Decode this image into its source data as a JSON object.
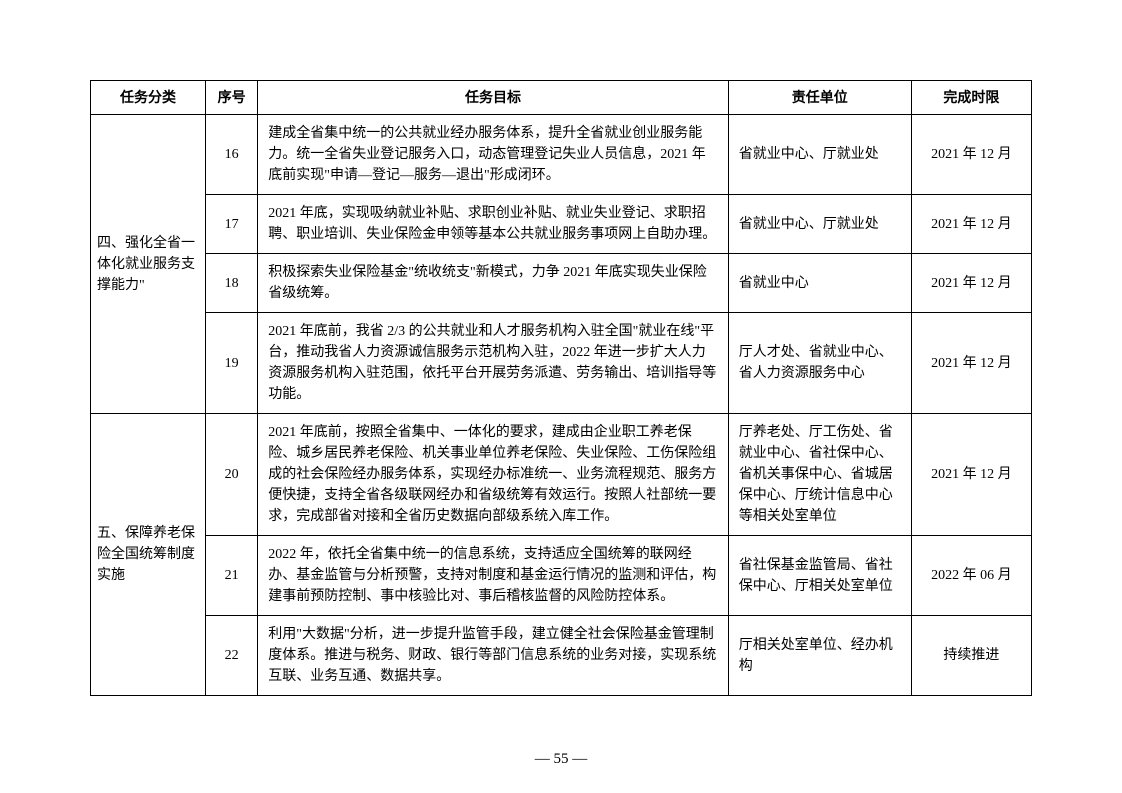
{
  "table": {
    "headers": {
      "category": "任务分类",
      "index": "序号",
      "goal": "任务目标",
      "unit": "责任单位",
      "deadline": "完成时限"
    },
    "groups": [
      {
        "category": "四、强化全省一体化就业服务支撑能力\"",
        "rows": [
          {
            "index": "16",
            "goal": "建成全省集中统一的公共就业经办服务体系，提升全省就业创业服务能力。统一全省失业登记服务入口，动态管理登记失业人员信息，2021 年底前实现\"申请—登记—服务—退出\"形成闭环。",
            "unit": "省就业中心、厅就业处",
            "deadline": "2021 年 12 月"
          },
          {
            "index": "17",
            "goal": "2021 年底，实现吸纳就业补贴、求职创业补贴、就业失业登记、求职招聘、职业培训、失业保险金申领等基本公共就业服务事项网上自助办理。",
            "unit": "省就业中心、厅就业处",
            "deadline": "2021 年 12 月"
          },
          {
            "index": "18",
            "goal": "积极探索失业保险基金\"统收统支\"新模式，力争 2021 年底实现失业保险省级统筹。",
            "unit": "省就业中心",
            "deadline": "2021 年 12 月"
          },
          {
            "index": "19",
            "goal": "2021 年底前，我省 2/3 的公共就业和人才服务机构入驻全国\"就业在线\"平台，推动我省人力资源诚信服务示范机构入驻，2022 年进一步扩大人力资源服务机构入驻范围，依托平台开展劳务派遣、劳务输出、培训指导等功能。",
            "unit": "厅人才处、省就业中心、省人力资源服务中心",
            "deadline": "2021 年 12 月"
          }
        ]
      },
      {
        "category": "五、保障养老保险全国统筹制度实施",
        "rows": [
          {
            "index": "20",
            "goal": "2021 年底前，按照全省集中、一体化的要求，建成由企业职工养老保险、城乡居民养老保险、机关事业单位养老保险、失业保险、工伤保险组成的社会保险经办服务体系，实现经办标准统一、业务流程规范、服务方便快捷，支持全省各级联网经办和省级统筹有效运行。按照人社部统一要求，完成部省对接和全省历史数据向部级系统入库工作。",
            "unit": "厅养老处、厅工伤处、省就业中心、省社保中心、省机关事保中心、省城居保中心、厅统计信息中心等相关处室单位",
            "deadline": "2021 年 12 月"
          },
          {
            "index": "21",
            "goal": "2022 年，依托全省集中统一的信息系统，支持适应全国统筹的联网经办、基金监管与分析预警，支持对制度和基金运行情况的监测和评估，构建事前预防控制、事中核验比对、事后稽核监督的风险防控体系。",
            "unit": "省社保基金监管局、省社保中心、厅相关处室单位",
            "deadline": "2022 年 06 月"
          },
          {
            "index": "22",
            "goal": "利用\"大数据\"分析，进一步提升监管手段，建立健全社会保险基金管理制度体系。推进与税务、财政、银行等部门信息系统的业务对接，实现系统互联、业务互通、数据共享。",
            "unit": "厅相关处室单位、经办机构",
            "deadline": "持续推进"
          }
        ]
      }
    ]
  },
  "page_number": "— 55 —"
}
